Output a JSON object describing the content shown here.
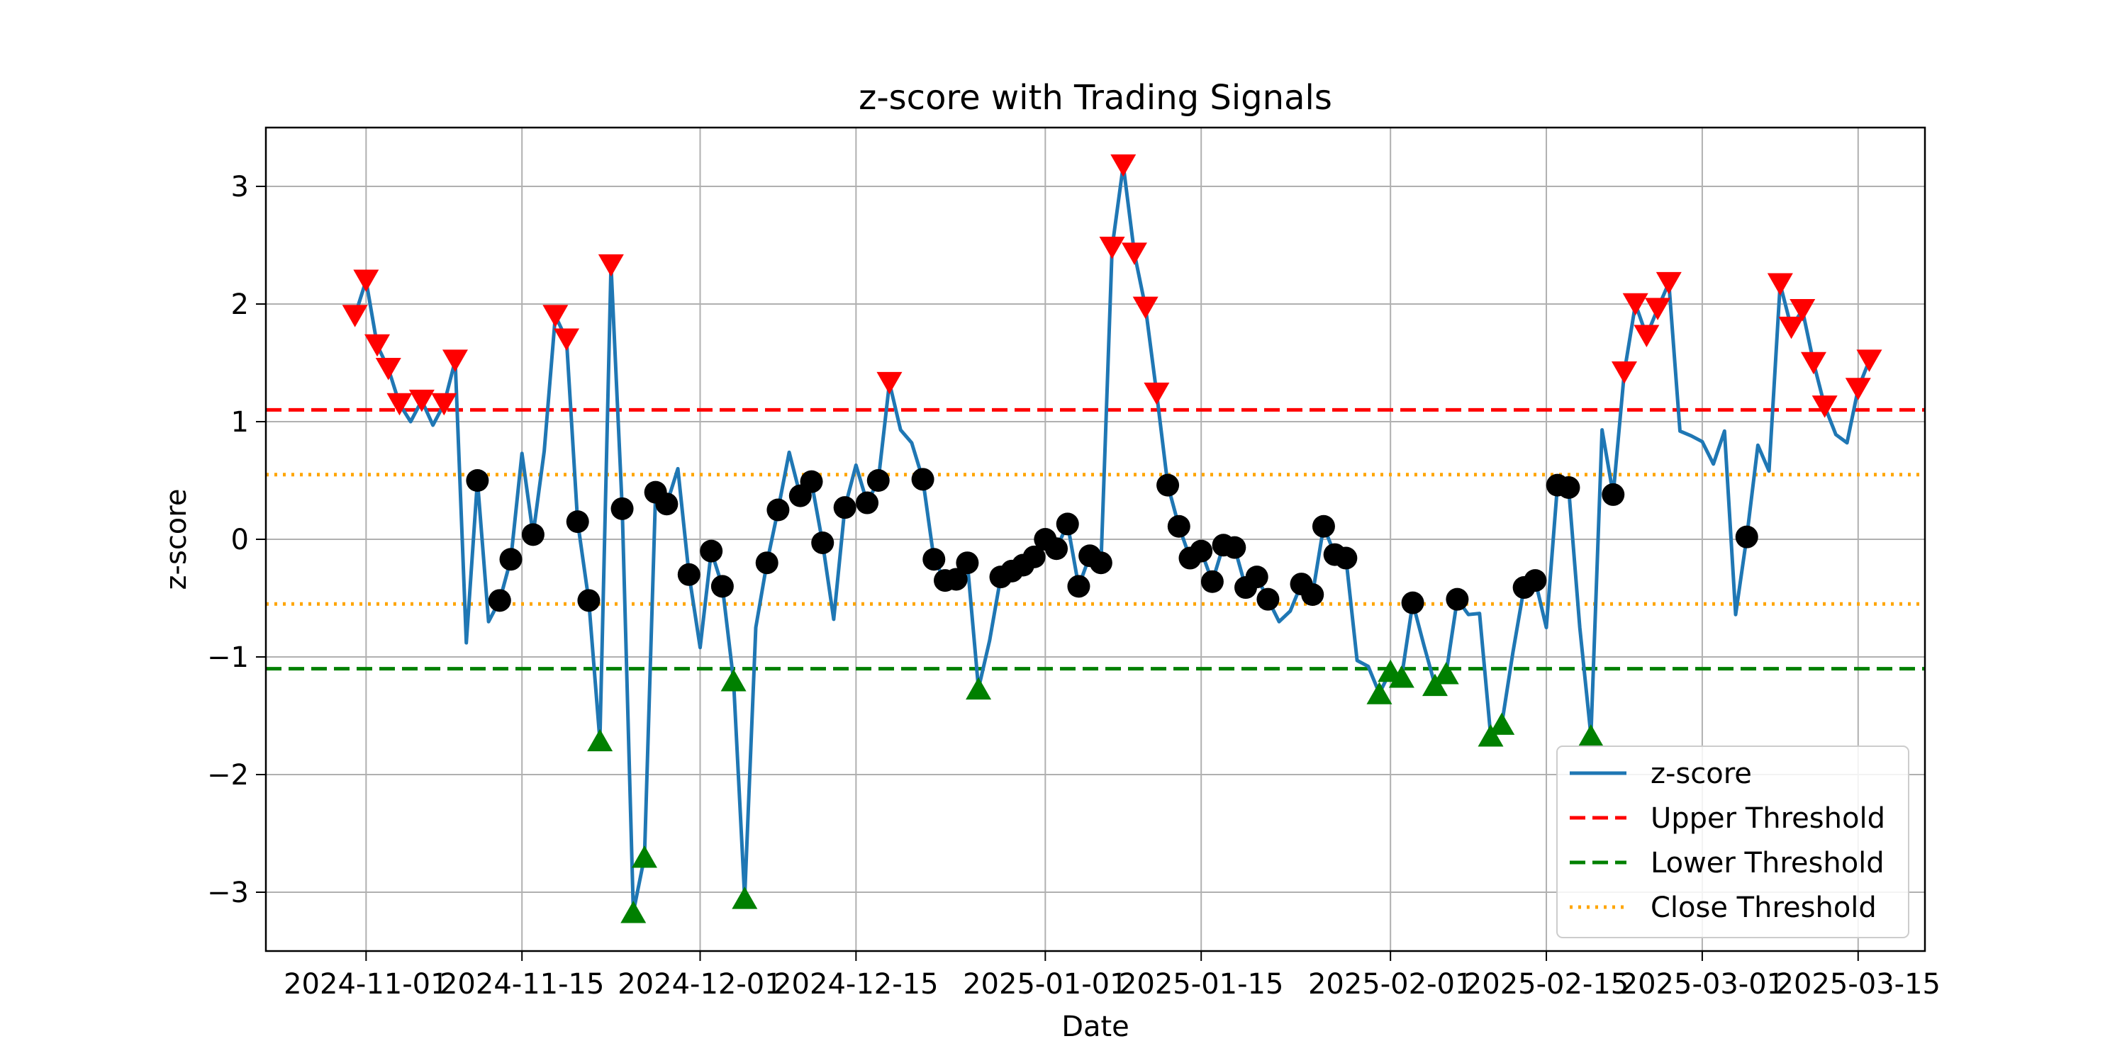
{
  "chart_data": {
    "type": "line",
    "title": "z-score with Trading Signals",
    "xlabel": "Date",
    "ylabel": "z-score",
    "xlim": [
      "2024-10-23",
      "2025-03-21"
    ],
    "ylim": [
      -3.5,
      3.5
    ],
    "grid": true,
    "legend_position": "lower-right",
    "x_ticks": [
      "2024-11-01",
      "2024-11-15",
      "2024-12-01",
      "2024-12-15",
      "2025-01-01",
      "2025-01-15",
      "2025-02-01",
      "2025-02-15",
      "2025-03-01",
      "2025-03-15"
    ],
    "y_ticks": [
      -3,
      -2,
      -1,
      0,
      1,
      2,
      3
    ],
    "y_tick_labels": [
      "−3",
      "−2",
      "−1",
      "0",
      "1",
      "2",
      "3"
    ],
    "series": [
      {
        "name": "z-score",
        "color": "#1f77b4",
        "style": "solid",
        "points": [
          [
            "2024-10-31",
            1.9
          ],
          [
            "2024-11-01",
            2.2
          ],
          [
            "2024-11-02",
            1.65
          ],
          [
            "2024-11-03",
            1.45
          ],
          [
            "2024-11-04",
            1.15
          ],
          [
            "2024-11-05",
            1.0
          ],
          [
            "2024-11-06",
            1.18
          ],
          [
            "2024-11-07",
            0.97
          ],
          [
            "2024-11-08",
            1.15
          ],
          [
            "2024-11-09",
            1.52
          ],
          [
            "2024-11-10",
            -0.88
          ],
          [
            "2024-11-11",
            0.5
          ],
          [
            "2024-11-12",
            -0.7
          ],
          [
            "2024-11-13",
            -0.52
          ],
          [
            "2024-11-14",
            -0.17
          ],
          [
            "2024-11-15",
            0.73
          ],
          [
            "2024-11-16",
            0.04
          ],
          [
            "2024-11-17",
            0.75
          ],
          [
            "2024-11-18",
            1.9
          ],
          [
            "2024-11-19",
            1.7
          ],
          [
            "2024-11-20",
            0.15
          ],
          [
            "2024-11-21",
            -0.52
          ],
          [
            "2024-11-22",
            -1.71
          ],
          [
            "2024-11-23",
            2.33
          ],
          [
            "2024-11-24",
            0.26
          ],
          [
            "2024-11-25",
            -3.17
          ],
          [
            "2024-11-26",
            -2.7
          ],
          [
            "2024-11-27",
            0.4
          ],
          [
            "2024-11-28",
            0.3
          ],
          [
            "2024-11-29",
            0.6
          ],
          [
            "2024-11-30",
            -0.3
          ],
          [
            "2024-12-01",
            -0.92
          ],
          [
            "2024-12-02",
            -0.1
          ],
          [
            "2024-12-03",
            -0.4
          ],
          [
            "2024-12-04",
            -1.2
          ],
          [
            "2024-12-05",
            -3.05
          ],
          [
            "2024-12-06",
            -0.75
          ],
          [
            "2024-12-07",
            -0.2
          ],
          [
            "2024-12-08",
            0.25
          ],
          [
            "2024-12-09",
            0.74
          ],
          [
            "2024-12-10",
            0.37
          ],
          [
            "2024-12-11",
            0.49
          ],
          [
            "2024-12-12",
            -0.03
          ],
          [
            "2024-12-13",
            -0.68
          ],
          [
            "2024-12-14",
            0.27
          ],
          [
            "2024-12-15",
            0.63
          ],
          [
            "2024-12-16",
            0.31
          ],
          [
            "2024-12-17",
            0.5
          ],
          [
            "2024-12-18",
            1.33
          ],
          [
            "2024-12-19",
            0.93
          ],
          [
            "2024-12-20",
            0.82
          ],
          [
            "2024-12-21",
            0.51
          ],
          [
            "2024-12-22",
            -0.17
          ],
          [
            "2024-12-23",
            -0.35
          ],
          [
            "2024-12-24",
            -0.34
          ],
          [
            "2024-12-25",
            -0.2
          ],
          [
            "2024-12-26",
            -1.27
          ],
          [
            "2024-12-27",
            -0.86
          ],
          [
            "2024-12-28",
            -0.32
          ],
          [
            "2024-12-29",
            -0.27
          ],
          [
            "2024-12-30",
            -0.22
          ],
          [
            "2024-12-31",
            -0.15
          ],
          [
            "2025-01-01",
            0.0
          ],
          [
            "2025-01-02",
            -0.08
          ],
          [
            "2025-01-03",
            0.13
          ],
          [
            "2025-01-04",
            -0.4
          ],
          [
            "2025-01-05",
            -0.14
          ],
          [
            "2025-01-06",
            -0.2
          ],
          [
            "2025-01-07",
            2.48
          ],
          [
            "2025-01-08",
            3.18
          ],
          [
            "2025-01-09",
            2.43
          ],
          [
            "2025-01-10",
            1.97
          ],
          [
            "2025-01-11",
            1.24
          ],
          [
            "2025-01-12",
            0.46
          ],
          [
            "2025-01-13",
            0.11
          ],
          [
            "2025-01-14",
            -0.16
          ],
          [
            "2025-01-15",
            -0.1
          ],
          [
            "2025-01-16",
            -0.36
          ],
          [
            "2025-01-17",
            -0.05
          ],
          [
            "2025-01-18",
            -0.07
          ],
          [
            "2025-01-19",
            -0.41
          ],
          [
            "2025-01-20",
            -0.32
          ],
          [
            "2025-01-21",
            -0.51
          ],
          [
            "2025-01-22",
            -0.7
          ],
          [
            "2025-01-23",
            -0.61
          ],
          [
            "2025-01-24",
            -0.38
          ],
          [
            "2025-01-25",
            -0.47
          ],
          [
            "2025-01-26",
            0.11
          ],
          [
            "2025-01-27",
            -0.13
          ],
          [
            "2025-01-28",
            -0.16
          ],
          [
            "2025-01-29",
            -1.03
          ],
          [
            "2025-01-30",
            -1.08
          ],
          [
            "2025-01-31",
            -1.31
          ],
          [
            "2025-02-01",
            -1.12
          ],
          [
            "2025-02-02",
            -1.17
          ],
          [
            "2025-02-03",
            -0.54
          ],
          [
            "2025-02-04",
            -0.9
          ],
          [
            "2025-02-05",
            -1.24
          ],
          [
            "2025-02-06",
            -1.14
          ],
          [
            "2025-02-07",
            -0.51
          ],
          [
            "2025-02-08",
            -0.64
          ],
          [
            "2025-02-09",
            -0.63
          ],
          [
            "2025-02-10",
            -1.67
          ],
          [
            "2025-02-11",
            -1.57
          ],
          [
            "2025-02-12",
            -0.96
          ],
          [
            "2025-02-13",
            -0.41
          ],
          [
            "2025-02-14",
            -0.35
          ],
          [
            "2025-02-15",
            -0.75
          ],
          [
            "2025-02-16",
            0.46
          ],
          [
            "2025-02-17",
            0.44
          ],
          [
            "2025-02-18",
            -0.75
          ],
          [
            "2025-02-19",
            -1.67
          ],
          [
            "2025-02-20",
            0.93
          ],
          [
            "2025-02-21",
            0.38
          ],
          [
            "2025-02-22",
            1.42
          ],
          [
            "2025-02-23",
            2.0
          ],
          [
            "2025-02-24",
            1.73
          ],
          [
            "2025-02-25",
            1.96
          ],
          [
            "2025-02-26",
            2.18
          ],
          [
            "2025-02-27",
            0.92
          ],
          [
            "2025-02-28",
            0.88
          ],
          [
            "2025-03-01",
            0.83
          ],
          [
            "2025-03-02",
            0.64
          ],
          [
            "2025-03-03",
            0.92
          ],
          [
            "2025-03-04",
            -0.64
          ],
          [
            "2025-03-05",
            0.02
          ],
          [
            "2025-03-06",
            0.8
          ],
          [
            "2025-03-07",
            0.58
          ],
          [
            "2025-03-08",
            2.17
          ],
          [
            "2025-03-09",
            1.8
          ],
          [
            "2025-03-10",
            1.95
          ],
          [
            "2025-03-11",
            1.5
          ],
          [
            "2025-03-12",
            1.13
          ],
          [
            "2025-03-13",
            0.89
          ],
          [
            "2025-03-14",
            0.82
          ],
          [
            "2025-03-15",
            1.28
          ],
          [
            "2025-03-16",
            1.52
          ]
        ]
      }
    ],
    "thresholds": [
      {
        "name": "Upper Threshold",
        "value": 1.1,
        "color": "#ff0000",
        "style": "dashed"
      },
      {
        "name": "Upper Close",
        "value": 0.55,
        "color": "#ffa500",
        "style": "dotted",
        "legend": false
      },
      {
        "name": "Close Threshold",
        "value": -0.55,
        "color": "#ffa500",
        "style": "dotted"
      },
      {
        "name": "Lower Threshold",
        "value": -1.1,
        "color": "#008000",
        "style": "dashed"
      }
    ],
    "signals": {
      "sell_color": "#ff0000",
      "buy_color": "#008000",
      "close_color": "#000000",
      "sell_marker": "triangle-down-icon",
      "buy_marker": "triangle-up-icon",
      "close_marker": "circle-icon",
      "rule": "sell when z > upper threshold; buy when z < lower threshold; close marker when |z| <= close threshold"
    },
    "legend": [
      {
        "label": "z-score",
        "color": "#1f77b4",
        "style": "solid"
      },
      {
        "label": "Upper Threshold",
        "color": "#ff0000",
        "style": "dashed"
      },
      {
        "label": "Lower Threshold",
        "color": "#008000",
        "style": "dashed"
      },
      {
        "label": "Close Threshold",
        "color": "#ffa500",
        "style": "dotted"
      }
    ]
  }
}
